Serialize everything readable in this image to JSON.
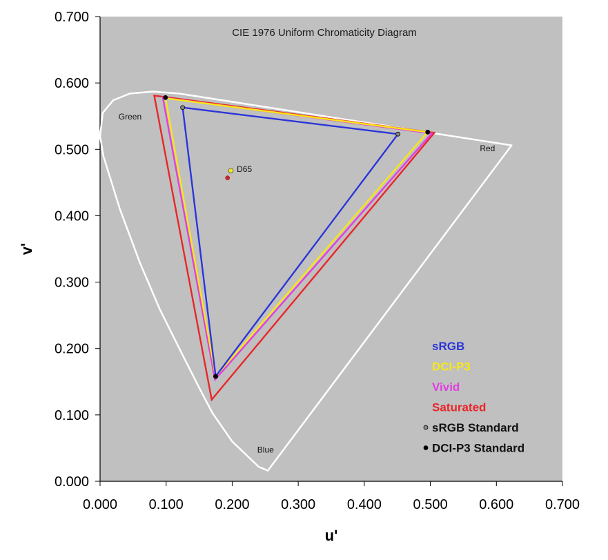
{
  "chart_data": {
    "type": "scatter",
    "title": "CIE 1976 Uniform Chromaticity Diagram",
    "xlabel": "u'",
    "ylabel": "v'",
    "xlim": [
      0.0,
      0.7
    ],
    "ylim": [
      0.0,
      0.7
    ],
    "x_ticks": [
      "0.000",
      "0.100",
      "0.200",
      "0.300",
      "0.400",
      "0.500",
      "0.600",
      "0.700"
    ],
    "y_ticks": [
      "0.000",
      "0.100",
      "0.200",
      "0.300",
      "0.400",
      "0.500",
      "0.600",
      "0.700"
    ],
    "grid": false,
    "plot_background": "#c0c0c0",
    "region_labels": [
      {
        "text": "Green",
        "x": 0.028,
        "y": 0.545
      },
      {
        "text": "Red",
        "x": 0.575,
        "y": 0.497
      },
      {
        "text": "Blue",
        "x": 0.238,
        "y": 0.043
      },
      {
        "text": "D65",
        "x": 0.207,
        "y": 0.466
      }
    ],
    "spectral_locus": {
      "color": "#ffffff",
      "points": [
        [
          0.623,
          0.506
        ],
        [
          0.254,
          0.016
        ],
        [
          0.24,
          0.022
        ],
        [
          0.2,
          0.06
        ],
        [
          0.17,
          0.103
        ],
        [
          0.15,
          0.141
        ],
        [
          0.12,
          0.2
        ],
        [
          0.09,
          0.26
        ],
        [
          0.06,
          0.33
        ],
        [
          0.03,
          0.41
        ],
        [
          0.005,
          0.49
        ],
        [
          0.0,
          0.52
        ],
        [
          0.004,
          0.555
        ],
        [
          0.02,
          0.574
        ],
        [
          0.045,
          0.584
        ],
        [
          0.08,
          0.587
        ],
        [
          0.12,
          0.584
        ],
        [
          0.623,
          0.506
        ]
      ]
    },
    "series": [
      {
        "name": "sRGB",
        "color": "#2b35d8",
        "points": [
          [
            0.125,
            0.563
          ],
          [
            0.451,
            0.523
          ],
          [
            0.175,
            0.158
          ]
        ]
      },
      {
        "name": "DCI-P3",
        "color": "#f6e716",
        "points": [
          [
            0.099,
            0.577
          ],
          [
            0.496,
            0.526
          ],
          [
            0.175,
            0.158
          ]
        ]
      },
      {
        "name": "Vivid",
        "color": "#e23ee0",
        "points": [
          [
            0.095,
            0.578
          ],
          [
            0.502,
            0.524
          ],
          [
            0.174,
            0.153
          ]
        ]
      },
      {
        "name": "Saturated",
        "color": "#e8262a",
        "points": [
          [
            0.082,
            0.581
          ],
          [
            0.506,
            0.525
          ],
          [
            0.169,
            0.123
          ]
        ]
      }
    ],
    "reference_points": [
      {
        "name": "sRGB Standard",
        "color": "#888888",
        "points": [
          [
            0.125,
            0.563
          ],
          [
            0.451,
            0.523
          ],
          [
            0.175,
            0.158
          ]
        ]
      },
      {
        "name": "DCI-P3 Standard",
        "color": "#000000",
        "points": [
          [
            0.099,
            0.578
          ],
          [
            0.496,
            0.526
          ],
          [
            0.175,
            0.158
          ]
        ]
      }
    ],
    "white_points": [
      {
        "color": "#f6e716",
        "x": 0.198,
        "y": 0.468
      },
      {
        "color": "#c0282b",
        "x": 0.193,
        "y": 0.457
      }
    ],
    "legend": {
      "placement": "bottom-right",
      "entries": [
        {
          "label": "sRGB",
          "color": "#2b35d8",
          "marker": ""
        },
        {
          "label": "DCI-P3",
          "color": "#f6e716",
          "marker": ""
        },
        {
          "label": "Vivid",
          "color": "#e23ee0",
          "marker": ""
        },
        {
          "label": "Saturated",
          "color": "#e8262a",
          "marker": ""
        },
        {
          "label": "sRGB Standard",
          "color": "#111111",
          "marker": "#888888"
        },
        {
          "label": "DCI-P3 Standard",
          "color": "#111111",
          "marker": "#000000"
        }
      ]
    }
  }
}
